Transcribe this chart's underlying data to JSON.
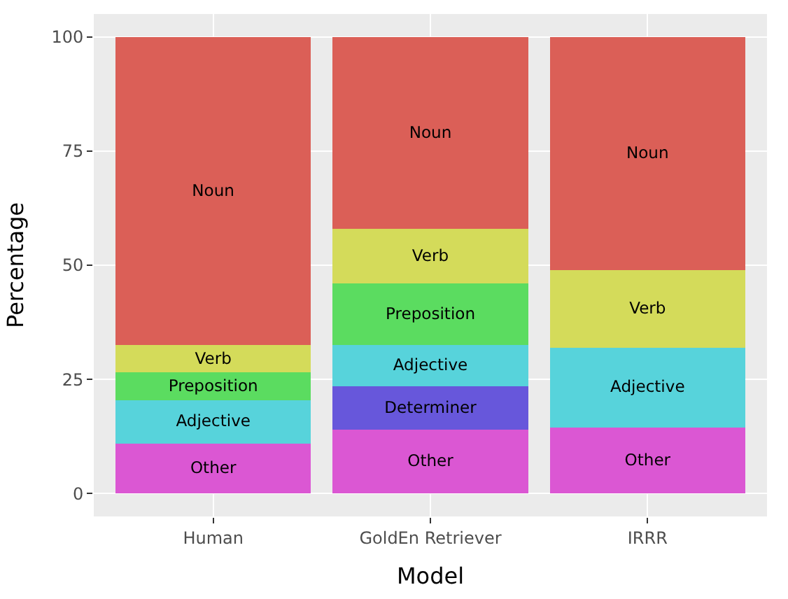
{
  "chart_data": {
    "type": "bar",
    "stacked": true,
    "xlabel": "Model",
    "ylabel": "Percentage",
    "categories": [
      "Human",
      "GoldEn Retriever",
      "IRRR"
    ],
    "series": [
      {
        "name": "Other",
        "color": "#db57d3",
        "values": [
          11,
          14,
          14.5
        ]
      },
      {
        "name": "Determiner",
        "color": "#6757db",
        "values": [
          null,
          9.5,
          null
        ]
      },
      {
        "name": "Adjective",
        "color": "#57d3db",
        "values": [
          9.5,
          9,
          17.5
        ]
      },
      {
        "name": "Preposition",
        "color": "#5bdc60",
        "values": [
          6,
          13.5,
          null
        ]
      },
      {
        "name": "Verb",
        "color": "#d4db5a",
        "values": [
          6,
          12,
          17
        ]
      },
      {
        "name": "Noun",
        "color": "#db5f57",
        "values": [
          67.5,
          42,
          51
        ]
      }
    ],
    "ylim": [
      -5,
      105
    ],
    "yticks": [
      0,
      25,
      50,
      75,
      100
    ],
    "grid": true,
    "legend": false
  }
}
